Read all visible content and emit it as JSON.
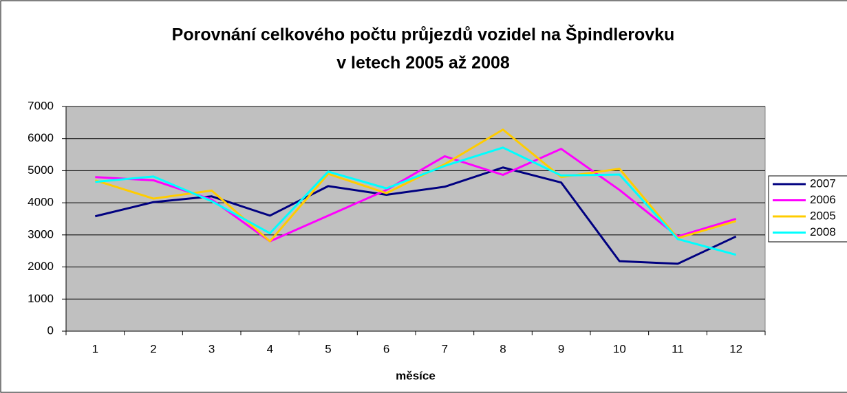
{
  "chart_data": {
    "type": "line",
    "title": [
      "Porovnání celkového počtu průjezdů vozidel na Špindlerovku",
      "v letech 2005 až 2008"
    ],
    "xlabel": "měsíce",
    "categories": [
      "1",
      "2",
      "3",
      "4",
      "5",
      "6",
      "7",
      "8",
      "9",
      "10",
      "11",
      "12"
    ],
    "series": [
      {
        "name": "2007",
        "color": "#000080",
        "values": [
          3580,
          4020,
          4200,
          3600,
          4520,
          4250,
          4500,
          5100,
          4630,
          2180,
          2100,
          2950
        ]
      },
      {
        "name": "2006",
        "color": "#ff00ff",
        "values": [
          4800,
          4700,
          4100,
          2800,
          3600,
          4400,
          5450,
          4870,
          5680,
          4400,
          2950,
          3500
        ]
      },
      {
        "name": "2005",
        "color": "#ffcc00",
        "values": [
          4700,
          4130,
          4380,
          2800,
          4900,
          4300,
          5200,
          6280,
          4800,
          5060,
          2900,
          3430
        ]
      },
      {
        "name": "2008",
        "color": "#00ffff",
        "values": [
          4650,
          4820,
          4050,
          3050,
          4970,
          4450,
          5150,
          5720,
          4850,
          4880,
          2870,
          2380
        ]
      }
    ],
    "ylim": [
      0,
      7000
    ],
    "yticks": [
      0,
      1000,
      2000,
      3000,
      4000,
      5000,
      6000,
      7000
    ],
    "grid": true,
    "plot_background": "#c0c0c0",
    "legend": "right"
  }
}
